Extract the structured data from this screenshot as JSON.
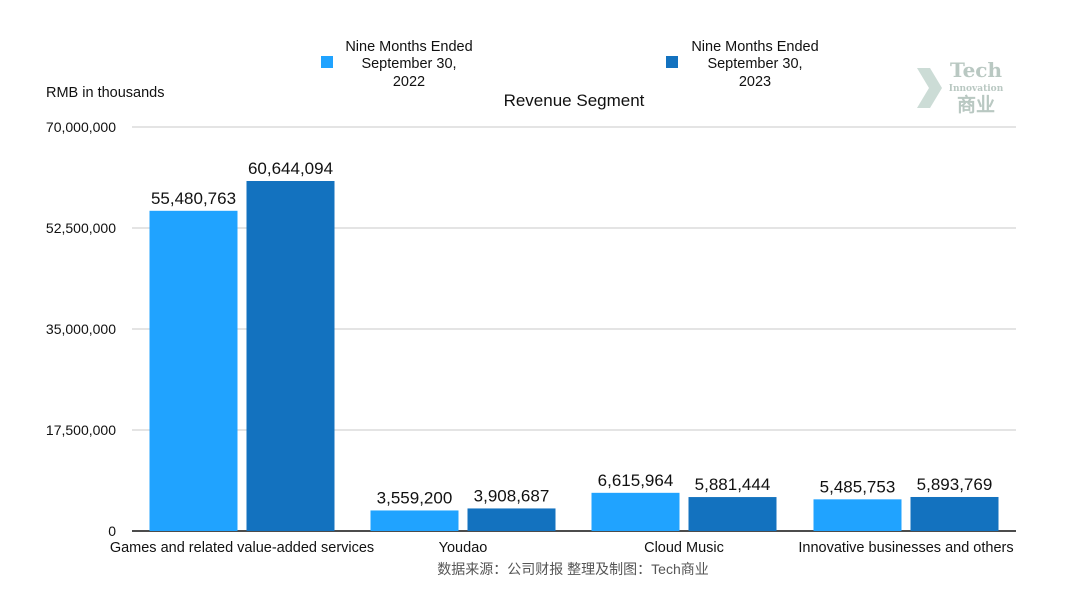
{
  "watermark": {
    "top": "Tech",
    "middle": "Innovation",
    "bottom": "商业"
  },
  "source_note": "数据来源：公司财报 整理及制图：Tech商业",
  "colors": {
    "series_2022": "#20a3ff",
    "series_2023": "#1372bf",
    "grid": "#c8c8c8",
    "axis": "#111111"
  },
  "chart_data": {
    "type": "bar",
    "title": "Revenue Segment",
    "ylabel": "RMB in thousands",
    "xlabel": "",
    "ylim": [
      0,
      70000000
    ],
    "yticks": [
      0,
      17500000,
      35000000,
      52500000,
      70000000
    ],
    "ytick_labels": [
      "0",
      "17,500,000",
      "35,000,000",
      "52,500,000",
      "70,000,000"
    ],
    "grid": true,
    "legend_position": "top",
    "categories": [
      "Games and related value-added services",
      "Youdao",
      "Cloud Music",
      "Innovative businesses and others"
    ],
    "series": [
      {
        "name_lines": [
          "Nine Months Ended",
          "September 30,",
          "2022"
        ],
        "values": [
          55480763,
          3559200,
          6615964,
          5485753
        ],
        "labels": [
          "55,480,763",
          "3,559,200",
          "6,615,964",
          "5,485,753"
        ]
      },
      {
        "name_lines": [
          "Nine Months Ended",
          "September 30,",
          "2023"
        ],
        "values": [
          60644094,
          3908687,
          5881444,
          5893769
        ],
        "labels": [
          "60,644,094",
          "3,908,687",
          "5,881,444",
          "5,893,769"
        ]
      }
    ]
  }
}
